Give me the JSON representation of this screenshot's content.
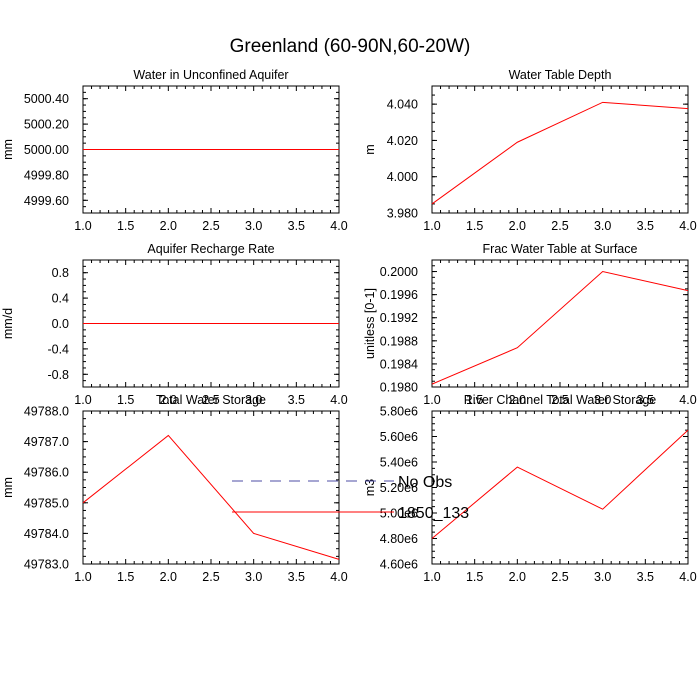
{
  "title": "Greenland (60-90N,60-20W)",
  "legend": [
    {
      "label": "No Obs",
      "color": "#4c4ca6",
      "style": "dashed"
    },
    {
      "label": "1850_133",
      "color": "#ff0000",
      "style": "solid"
    }
  ],
  "chart_data": [
    {
      "type": "line",
      "title": "Water in Unconfined Aquifer",
      "xlabel": "",
      "ylabel": "mm",
      "x": [
        1.0,
        2.0,
        3.0,
        4.0
      ],
      "xlim": [
        1.0,
        4.0
      ],
      "xticks": [
        "1.0",
        "1.5",
        "2.0",
        "2.5",
        "3.0",
        "3.5",
        "4.0"
      ],
      "ylim": [
        4999.5,
        5000.5
      ],
      "yticks": [
        "4999.60",
        "4999.80",
        "5000.00",
        "5000.20",
        "5000.40"
      ],
      "series": [
        {
          "name": "1850_133",
          "values": [
            5000.0,
            5000.0,
            5000.0,
            5000.0
          ]
        }
      ]
    },
    {
      "type": "line",
      "title": "Water Table Depth",
      "xlabel": "",
      "ylabel": "m",
      "x": [
        1.0,
        2.0,
        3.0,
        4.0
      ],
      "xlim": [
        1.0,
        4.0
      ],
      "xticks": [
        "1.0",
        "1.5",
        "2.0",
        "2.5",
        "3.0",
        "3.5",
        "4.0"
      ],
      "ylim": [
        3.98,
        4.05
      ],
      "yticks": [
        "3.980",
        "4.000",
        "4.020",
        "4.040"
      ],
      "series": [
        {
          "name": "1850_133",
          "values": [
            3.985,
            4.019,
            4.041,
            4.0375
          ]
        }
      ]
    },
    {
      "type": "line",
      "title": "Aquifer Recharge Rate",
      "xlabel": "",
      "ylabel": "mm/d",
      "x": [
        1.0,
        2.0,
        3.0,
        4.0
      ],
      "xlim": [
        1.0,
        4.0
      ],
      "xticks": [
        "1.0",
        "1.5",
        "2.0",
        "2.5",
        "3.0",
        "3.5",
        "4.0"
      ],
      "ylim": [
        -1.0,
        1.0
      ],
      "yticks": [
        "-0.8",
        "-0.4",
        "0.0",
        "0.4",
        "0.8"
      ],
      "series": [
        {
          "name": "1850_133",
          "values": [
            0.0,
            0.0,
            0.0,
            0.0
          ]
        }
      ]
    },
    {
      "type": "line",
      "title": "Frac Water Table at Surface",
      "xlabel": "",
      "ylabel": "unitless [0-1]",
      "x": [
        1.0,
        2.0,
        3.0,
        4.0
      ],
      "xlim": [
        1.0,
        4.0
      ],
      "xticks": [
        "1.0",
        "1.5",
        "2.0",
        "2.5",
        "3.0",
        "3.5",
        "4.0"
      ],
      "ylim": [
        0.198,
        0.2002
      ],
      "yticks": [
        "0.1980",
        "0.1984",
        "0.1988",
        "0.1992",
        "0.1996",
        "0.2000"
      ],
      "series": [
        {
          "name": "1850_133",
          "values": [
            0.19805,
            0.19868,
            0.2,
            0.19967
          ]
        }
      ]
    },
    {
      "type": "line",
      "title": "Total Water Storage",
      "xlabel": "",
      "ylabel": "mm",
      "x": [
        1.0,
        2.0,
        3.0,
        4.0
      ],
      "xlim": [
        1.0,
        4.0
      ],
      "xticks": [
        "1.0",
        "1.5",
        "2.0",
        "2.5",
        "3.0",
        "3.5",
        "4.0"
      ],
      "ylim": [
        49783.0,
        49788.0
      ],
      "yticks": [
        "49783.0",
        "49784.0",
        "49785.0",
        "49786.0",
        "49787.0",
        "49788.0"
      ],
      "series": [
        {
          "name": "1850_133",
          "values": [
            49785.0,
            49787.2,
            49784.0,
            49783.15
          ]
        }
      ]
    },
    {
      "type": "line",
      "title": "River Channel Total Water Storage",
      "xlabel": "",
      "ylabel": "m3",
      "x": [
        1.0,
        2.0,
        3.0,
        4.0
      ],
      "xlim": [
        1.0,
        4.0
      ],
      "xticks": [
        "1.0",
        "1.5",
        "2.0",
        "2.5",
        "3.0",
        "3.5",
        "4.0"
      ],
      "ylim": [
        4600000,
        5800000
      ],
      "yticks": [
        "4.60e6",
        "4.80e6",
        "5.00e6",
        "5.20e6",
        "5.40e6",
        "5.60e6",
        "5.80e6"
      ],
      "series": [
        {
          "name": "1850_133",
          "values": [
            4800000,
            5360000,
            5030000,
            5650000
          ]
        }
      ]
    }
  ]
}
